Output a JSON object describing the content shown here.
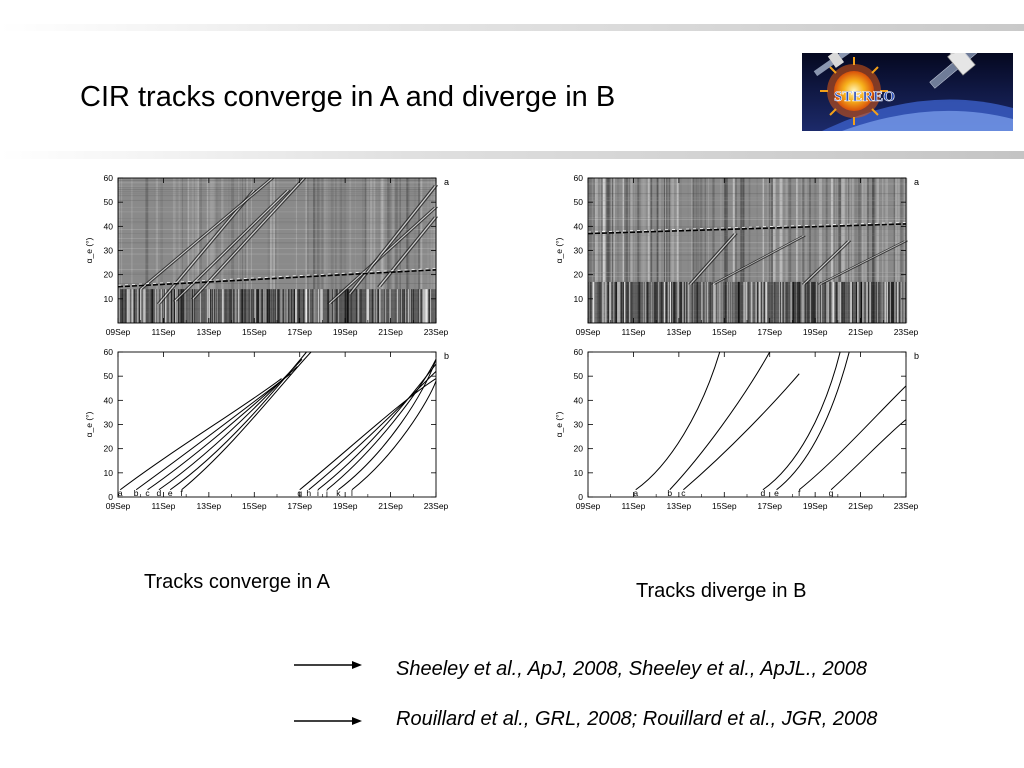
{
  "slide": {
    "title": "CIR tracks converge in A and diverge in B",
    "caption_left": "Tracks converge in A",
    "caption_right": "Tracks diverge in B",
    "references": [
      "Sheeley et al., ApJ, 2008, Sheeley et al., ApJL., 2008",
      "Rouillard et al., GRL, 2008; Rouillard et al., JGR, 2008"
    ],
    "logo_text": "STEREO"
  },
  "chart_data": [
    {
      "type": "heatmap",
      "panel_label": "a",
      "ylabel": "α_e (°)",
      "ylim": [
        0,
        60
      ],
      "yticks": [
        "10",
        "20",
        "30",
        "40",
        "50",
        "60"
      ],
      "xticks": [
        "09Sep",
        "11Sep",
        "13Sep",
        "15Sep",
        "17Sep",
        "19Sep",
        "21Sep",
        "23Sep"
      ],
      "tracks": [
        {
          "x": [
            1.8,
            6.0
          ],
          "y": [
            8,
            55
          ]
        },
        {
          "x": [
            1.0,
            6.8
          ],
          "y": [
            14,
            60
          ]
        },
        {
          "x": [
            2.5,
            7.5
          ],
          "y": [
            9,
            55
          ]
        },
        {
          "x": [
            3.3,
            8.2
          ],
          "y": [
            10,
            60
          ]
        },
        {
          "x": [
            9.3,
            14.0
          ],
          "y": [
            8,
            48
          ]
        },
        {
          "x": [
            10.2,
            14.0
          ],
          "y": [
            12,
            57
          ]
        },
        {
          "x": [
            11.5,
            14.0
          ],
          "y": [
            15,
            44
          ]
        }
      ],
      "horizon_line": {
        "x": [
          0,
          14
        ],
        "y": [
          15,
          22
        ]
      }
    },
    {
      "type": "line",
      "panel_label": "b",
      "ylabel": "α_e (°)",
      "ylim": [
        0,
        60
      ],
      "yticks": [
        "0",
        "10",
        "20",
        "30",
        "40",
        "50",
        "60"
      ],
      "xticks": [
        "09Sep",
        "11Sep",
        "13Sep",
        "15Sep",
        "17Sep",
        "19Sep",
        "21Sep",
        "23Sep"
      ],
      "series": [
        {
          "name": "a",
          "x": [
            0.1,
            2.5,
            5.5,
            7.2
          ],
          "y": [
            3,
            20,
            37,
            49
          ]
        },
        {
          "name": "b",
          "x": [
            0.8,
            3.0,
            5.8,
            7.6
          ],
          "y": [
            3,
            18,
            38,
            51
          ]
        },
        {
          "name": "c",
          "x": [
            1.3,
            3.6,
            6.2,
            7.9
          ],
          "y": [
            3,
            18,
            40,
            54
          ]
        },
        {
          "name": "d",
          "x": [
            1.8,
            4.1,
            6.6,
            8.1
          ],
          "y": [
            3,
            18,
            42,
            57
          ]
        },
        {
          "name": "e",
          "x": [
            2.3,
            4.7,
            6.9,
            8.3
          ],
          "y": [
            3,
            19,
            44,
            60
          ]
        },
        {
          "name": "f",
          "x": [
            2.8,
            5.0,
            7.2,
            8.5
          ],
          "y": [
            3,
            20,
            47,
            60
          ]
        },
        {
          "name": "g",
          "x": [
            8.0,
            10.2,
            12.5,
            14.0
          ],
          "y": [
            3,
            20,
            40,
            49
          ]
        },
        {
          "name": "h",
          "x": [
            8.4,
            10.6,
            12.8,
            14.0
          ],
          "y": [
            3,
            20,
            41,
            52
          ]
        },
        {
          "name": "i",
          "x": [
            8.8,
            11.0,
            13.0,
            14.0
          ],
          "y": [
            3,
            19,
            43,
            55
          ]
        },
        {
          "name": "j",
          "x": [
            9.2,
            11.3,
            13.3,
            14.0
          ],
          "y": [
            3,
            19,
            44,
            57
          ]
        },
        {
          "name": "k",
          "x": [
            9.7,
            11.8,
            13.5,
            14.0
          ],
          "y": [
            3,
            18,
            43,
            57
          ]
        },
        {
          "name": "l",
          "x": [
            10.3,
            12.2,
            13.7,
            14.0
          ],
          "y": [
            3,
            17,
            40,
            48
          ]
        }
      ]
    },
    {
      "type": "heatmap",
      "panel_label": "a",
      "ylabel": "α_e (°)",
      "ylim": [
        0,
        60
      ],
      "yticks": [
        "10",
        "20",
        "30",
        "40",
        "50",
        "60"
      ],
      "xticks": [
        "09Sep",
        "11Sep",
        "13Sep",
        "15Sep",
        "17Sep",
        "19Sep",
        "21Sep",
        "23Sep"
      ],
      "tracks": [
        {
          "x": [
            4.5,
            6.5
          ],
          "y": [
            16,
            37
          ]
        },
        {
          "x": [
            5.5,
            9.5
          ],
          "y": [
            16,
            36
          ]
        },
        {
          "x": [
            9.5,
            11.5
          ],
          "y": [
            16,
            34
          ]
        },
        {
          "x": [
            10.2,
            14.0
          ],
          "y": [
            16,
            34
          ]
        }
      ],
      "horizon_line": {
        "x": [
          0,
          14
        ],
        "y": [
          37,
          41
        ]
      }
    },
    {
      "type": "line",
      "panel_label": "b",
      "ylabel": "α_e (°)",
      "ylim": [
        0,
        60
      ],
      "yticks": [
        "0",
        "10",
        "20",
        "30",
        "40",
        "50",
        "60"
      ],
      "xticks": [
        "09Sep",
        "11Sep",
        "13Sep",
        "15Sep",
        "17Sep",
        "19Sep",
        "21Sep",
        "23Sep"
      ],
      "series": [
        {
          "name": "a",
          "x": [
            2.1,
            3.6,
            5.0,
            5.8
          ],
          "y": [
            3,
            13,
            35,
            60
          ]
        },
        {
          "name": "b",
          "x": [
            3.6,
            5.0,
            6.8,
            8.0
          ],
          "y": [
            3,
            17,
            40,
            60
          ]
        },
        {
          "name": "c",
          "x": [
            4.2,
            6.3,
            8.2,
            9.3
          ],
          "y": [
            3,
            20,
            39,
            51
          ]
        },
        {
          "name": "d",
          "x": [
            7.7,
            9.2,
            10.4,
            11.1
          ],
          "y": [
            3,
            13,
            34,
            60
          ]
        },
        {
          "name": "e",
          "x": [
            8.3,
            9.8,
            10.8,
            11.5
          ],
          "y": [
            3,
            14,
            35,
            60
          ]
        },
        {
          "name": "f",
          "x": [
            9.3,
            11.0,
            12.7,
            14.0
          ],
          "y": [
            3,
            16,
            34,
            46
          ]
        },
        {
          "name": "g",
          "x": [
            10.7,
            12.0,
            13.2,
            14.0
          ],
          "y": [
            3,
            14,
            26,
            32
          ]
        }
      ]
    }
  ]
}
